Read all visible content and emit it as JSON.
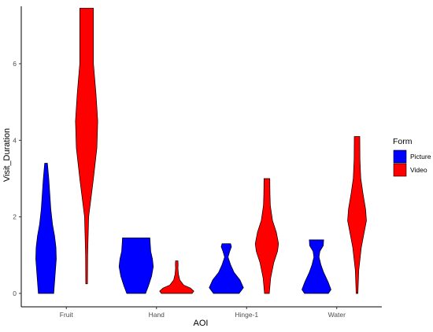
{
  "chart_data": {
    "type": "violin",
    "title": "",
    "xlabel": "AOI",
    "ylabel": "Visit_Duration",
    "categories": [
      "Fruit",
      "Hand",
      "Hinge-1",
      "Water"
    ],
    "ylim": [
      -0.35,
      7.5
    ],
    "yticks": [
      0,
      2,
      4,
      6
    ],
    "grid": false,
    "legend": {
      "title": "Form",
      "position": "right",
      "entries": [
        {
          "label": "Picture",
          "color": "#0000ff"
        },
        {
          "label": "Video",
          "color": "#ff0000"
        }
      ]
    },
    "series": [
      {
        "name": "Picture",
        "color": "#0000ff",
        "violins": [
          {
            "category": "Fruit",
            "min": 0,
            "max": 3.4,
            "profile": [
              [
                0,
                0.45
              ],
              [
                0.3,
                0.5
              ],
              [
                0.6,
                0.55
              ],
              [
                0.9,
                0.6
              ],
              [
                1.2,
                0.58
              ],
              [
                1.5,
                0.5
              ],
              [
                1.8,
                0.38
              ],
              [
                2.2,
                0.28
              ],
              [
                2.6,
                0.22
              ],
              [
                3.0,
                0.16
              ],
              [
                3.4,
                0.08
              ]
            ]
          },
          {
            "category": "Hand",
            "min": 0,
            "max": 1.45,
            "profile": [
              [
                0,
                0.55
              ],
              [
                0.2,
                0.72
              ],
              [
                0.45,
                0.9
              ],
              [
                0.7,
                1.0
              ],
              [
                0.9,
                0.95
              ],
              [
                1.1,
                0.85
              ],
              [
                1.3,
                0.82
              ],
              [
                1.45,
                0.8
              ]
            ]
          },
          {
            "category": "Hinge-1",
            "min": 0,
            "max": 1.3,
            "profile": [
              [
                0,
                0.75
              ],
              [
                0.15,
                1.0
              ],
              [
                0.35,
                0.8
              ],
              [
                0.55,
                0.45
              ],
              [
                0.75,
                0.25
              ],
              [
                0.95,
                0.1
              ],
              [
                1.1,
                0.2
              ],
              [
                1.22,
                0.3
              ],
              [
                1.3,
                0.25
              ]
            ]
          },
          {
            "category": "Water",
            "min": 0,
            "max": 1.4,
            "profile": [
              [
                0,
                0.7
              ],
              [
                0.1,
                0.85
              ],
              [
                0.3,
                0.68
              ],
              [
                0.55,
                0.42
              ],
              [
                0.75,
                0.26
              ],
              [
                0.95,
                0.15
              ],
              [
                1.1,
                0.2
              ],
              [
                1.25,
                0.4
              ],
              [
                1.4,
                0.42
              ]
            ]
          }
        ]
      },
      {
        "name": "Video",
        "color": "#ff0000",
        "violins": [
          {
            "category": "Fruit",
            "min": 0.25,
            "max": 7.45,
            "profile": [
              [
                0.25,
                0.05
              ],
              [
                1.0,
                0.06
              ],
              [
                2.0,
                0.12
              ],
              [
                3.0,
                0.4
              ],
              [
                3.8,
                0.6
              ],
              [
                4.5,
                0.65
              ],
              [
                5.2,
                0.55
              ],
              [
                6.0,
                0.4
              ],
              [
                6.8,
                0.4
              ],
              [
                7.45,
                0.4
              ]
            ]
          },
          {
            "category": "Hand",
            "min": 0,
            "max": 0.85,
            "profile": [
              [
                0,
                0.9
              ],
              [
                0.06,
                1.0
              ],
              [
                0.14,
                0.8
              ],
              [
                0.22,
                0.4
              ],
              [
                0.35,
                0.18
              ],
              [
                0.5,
                0.1
              ],
              [
                0.65,
                0.07
              ],
              [
                0.75,
                0.08
              ],
              [
                0.85,
                0.07
              ]
            ]
          },
          {
            "category": "Hinge-1",
            "min": 0,
            "max": 3.0,
            "profile": [
              [
                0,
                0.14
              ],
              [
                0.4,
                0.22
              ],
              [
                0.8,
                0.4
              ],
              [
                1.1,
                0.62
              ],
              [
                1.3,
                0.68
              ],
              [
                1.6,
                0.55
              ],
              [
                1.9,
                0.33
              ],
              [
                2.3,
                0.2
              ],
              [
                2.6,
                0.18
              ],
              [
                3.0,
                0.17
              ]
            ]
          },
          {
            "category": "Water",
            "min": 0,
            "max": 4.1,
            "profile": [
              [
                0,
                0.05
              ],
              [
                0.6,
                0.1
              ],
              [
                1.2,
                0.25
              ],
              [
                1.6,
                0.42
              ],
              [
                1.9,
                0.55
              ],
              [
                2.2,
                0.5
              ],
              [
                2.6,
                0.35
              ],
              [
                3.0,
                0.22
              ],
              [
                3.5,
                0.17
              ],
              [
                4.1,
                0.16
              ]
            ]
          }
        ]
      }
    ]
  }
}
